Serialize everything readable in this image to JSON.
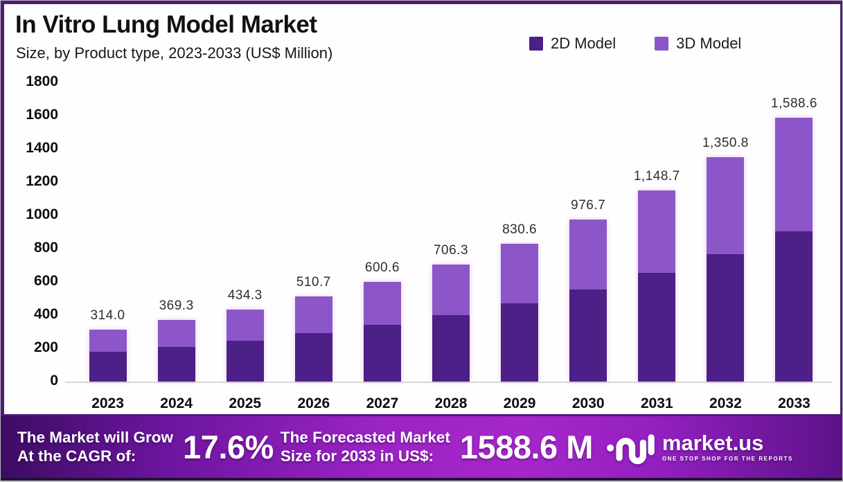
{
  "page": {
    "title": "In Vitro Lung Model Market",
    "subtitle": "Size, by Product type, 2023-2033 (US$ Million)"
  },
  "legend": {
    "items": [
      {
        "label": "2D Model",
        "color": "#4d2087"
      },
      {
        "label": "3D Model",
        "color": "#8d56c8"
      }
    ]
  },
  "chart_data": {
    "type": "bar",
    "stacked": true,
    "title": "In Vitro Lung Model Market Size, by Product type, 2023-2033 (US$ Million)",
    "categories": [
      "2023",
      "2024",
      "2025",
      "2026",
      "2027",
      "2028",
      "2029",
      "2030",
      "2031",
      "2032",
      "2033"
    ],
    "series": [
      {
        "name": "2D Model",
        "color": "#4d2087",
        "estimated_from_pixels": true,
        "values": [
          178.0,
          210.0,
          247.0,
          290.0,
          342.0,
          402.0,
          472.0,
          555.0,
          653.0,
          768.0,
          904.0
        ]
      },
      {
        "name": "3D Model",
        "color": "#8d56c8",
        "estimated_from_pixels": true,
        "values": [
          136.0,
          159.3,
          187.3,
          220.7,
          258.6,
          304.3,
          358.6,
          421.7,
          495.7,
          582.8,
          684.6
        ]
      }
    ],
    "totals": [
      314.0,
      369.3,
      434.3,
      510.7,
      600.6,
      706.3,
      830.6,
      976.7,
      1148.7,
      1350.8,
      1588.6
    ],
    "total_labels": [
      "314.0",
      "369.3",
      "434.3",
      "510.7",
      "600.6",
      "706.3",
      "830.6",
      "976.7",
      "1,148.7",
      "1,350.8",
      "1,588.6"
    ],
    "xlabel": "",
    "ylabel": "",
    "ylim": [
      0,
      1800
    ],
    "yticks": [
      0,
      200,
      400,
      600,
      800,
      1000,
      1200,
      1400,
      1600,
      1800
    ],
    "grid": false,
    "legend_position": "top-right"
  },
  "footer": {
    "cagr_label_line1": "The Market will Grow",
    "cagr_label_line2": "At the CAGR of:",
    "cagr_value": "17.6%",
    "forecast_label_line1": "The Forecasted Market",
    "forecast_label_line2": "Size for 2033 in US$:",
    "forecast_value": "1588.6 M",
    "brand": "market.us",
    "brand_tagline": "ONE STOP SHOP FOR THE REPORTS"
  }
}
